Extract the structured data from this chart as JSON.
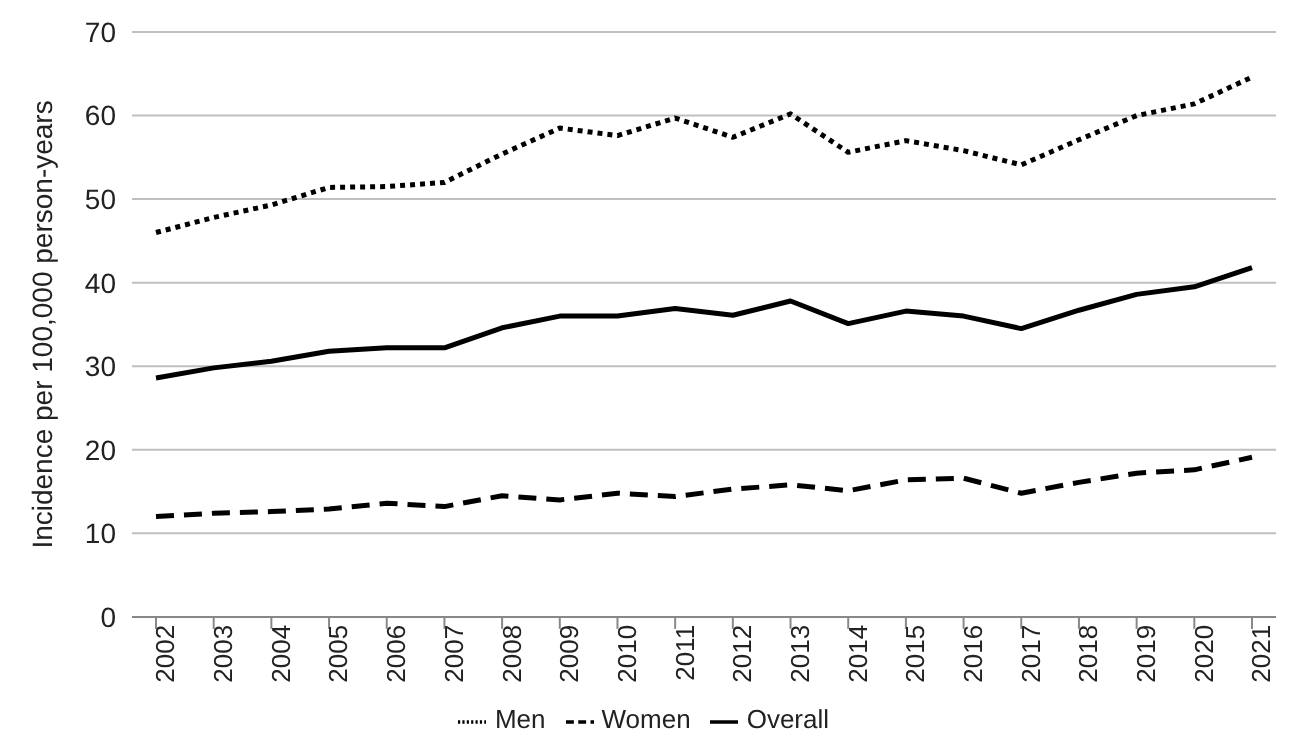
{
  "chart_data": {
    "type": "line",
    "ylabel": "Incidence per 100,000 person-years",
    "categories": [
      "2002",
      "2003",
      "2004",
      "2005",
      "2006",
      "2007",
      "2008",
      "2009",
      "2010",
      "2011",
      "2012",
      "2013",
      "2014",
      "2015",
      "2016",
      "2017",
      "2018",
      "2019",
      "2020",
      "2021"
    ],
    "series": [
      {
        "name": "Men",
        "color": "#000000",
        "line_style": "dotted",
        "values": [
          46,
          47.8,
          49.3,
          51.4,
          51.5,
          52,
          55.4,
          58.5,
          57.6,
          59.7,
          57.4,
          60.2,
          55.6,
          57,
          55.8,
          54.1,
          57.1,
          60,
          61.4,
          64.6
        ]
      },
      {
        "name": "Women",
        "color": "#000000",
        "line_style": "dashed",
        "values": [
          12,
          12.4,
          12.6,
          12.9,
          13.6,
          13.2,
          14.5,
          14,
          14.8,
          14.4,
          15.3,
          15.8,
          15.1,
          16.4,
          16.6,
          14.8,
          16.1,
          17.2,
          17.6,
          19.1
        ]
      },
      {
        "name": "Overall",
        "color": "#000000",
        "line_style": "solid",
        "values": [
          28.6,
          29.8,
          30.6,
          31.8,
          32.2,
          32.2,
          34.6,
          36,
          36,
          36.9,
          36.1,
          37.8,
          35.1,
          36.6,
          36,
          34.5,
          36.7,
          38.6,
          39.5,
          41.8
        ]
      }
    ],
    "ylim": [
      0,
      70
    ],
    "yticks": [
      0,
      10,
      20,
      30,
      40,
      50,
      60,
      70
    ],
    "grid": "y",
    "legend": "bottom",
    "marker": "none"
  }
}
